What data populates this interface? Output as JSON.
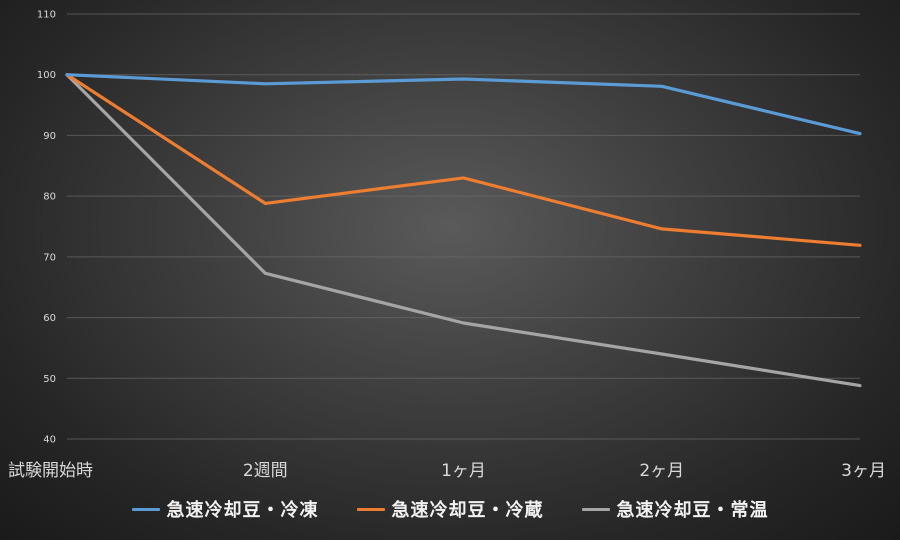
{
  "chart_data": {
    "type": "line",
    "title": "",
    "xlabel": "",
    "ylabel": "",
    "categories": [
      "試験開始時",
      "2週間",
      "1ヶ月",
      "2ヶ月",
      "3ヶ月"
    ],
    "ylim": [
      40,
      110
    ],
    "yticks": [
      40,
      50,
      60,
      70,
      80,
      90,
      100,
      110
    ],
    "grid": true,
    "legend": "bottom",
    "series": [
      {
        "name": "急速冷却豆・冷凍",
        "values": [
          100,
          98.5,
          99.3,
          98.1,
          90.3
        ],
        "color": "#5b9bd5"
      },
      {
        "name": "急速冷却豆・冷蔵",
        "values": [
          100,
          78.8,
          83.0,
          74.6,
          71.9
        ],
        "color": "#ed7d31"
      },
      {
        "name": "急速冷却豆・常温",
        "values": [
          100,
          67.3,
          59.1,
          54.0,
          48.8
        ],
        "color": "#a5a5a5"
      }
    ]
  }
}
